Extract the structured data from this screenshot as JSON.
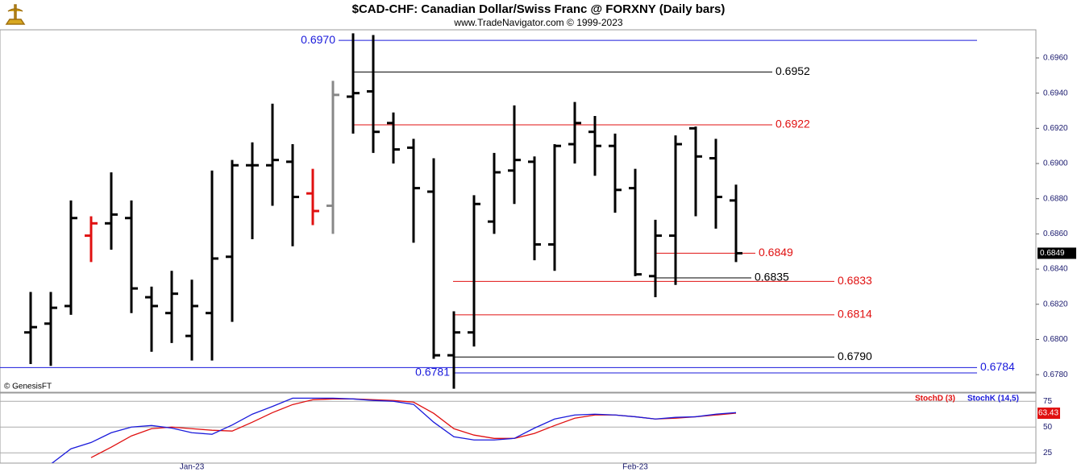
{
  "chart_data": [
    {
      "type": "ohlc",
      "title": "$CAD-CHF:  Canadian Dollar/Swiss Franc @ FORXNY  (Daily bars)",
      "subtitle": "www.TradeNavigator.com © 1999-2023",
      "credit": "© GenesisFT",
      "categories": [
        null,
        null,
        null,
        null,
        null,
        null,
        null,
        null,
        "Jan-23",
        null,
        null,
        null,
        null,
        null,
        null,
        null,
        null,
        null,
        null,
        null,
        null,
        null,
        null,
        null,
        null,
        null,
        null,
        null,
        null,
        null,
        "Feb-23",
        null,
        null,
        null,
        null,
        null
      ],
      "open": [
        0.6804,
        0.6809,
        0.6819,
        0.6859,
        0.6866,
        0.6869,
        0.6824,
        0.6815,
        0.6802,
        0.6815,
        0.6847,
        0.6899,
        0.6899,
        0.6901,
        0.6883,
        0.6876,
        0.6938,
        0.6941,
        0.6923,
        0.6909,
        0.6884,
        0.6791,
        0.6804,
        0.6867,
        0.6896,
        0.6901,
        0.6854,
        0.6911,
        0.6918,
        0.691,
        0.6886,
        0.6836,
        0.6859,
        0.692,
        0.6903,
        0.6879
      ],
      "high": [
        0.6827,
        0.6827,
        0.6879,
        0.687,
        0.6895,
        0.6879,
        0.683,
        0.6839,
        0.6834,
        0.6896,
        0.6902,
        0.6912,
        0.6934,
        0.6911,
        0.6897,
        0.6947,
        0.6974,
        0.6973,
        0.6929,
        0.6914,
        0.6903,
        0.6816,
        0.6882,
        0.6906,
        0.6933,
        0.6904,
        0.6911,
        0.6935,
        0.6927,
        0.6917,
        0.6897,
        0.6868,
        0.6916,
        0.6921,
        0.6914,
        0.6888
      ],
      "low": [
        0.6786,
        0.6785,
        0.6814,
        0.6844,
        0.6851,
        0.6815,
        0.6793,
        0.6798,
        0.6788,
        0.6788,
        0.681,
        0.6857,
        0.6876,
        0.6853,
        0.6865,
        0.686,
        0.6917,
        0.6906,
        0.69,
        0.6855,
        0.6789,
        0.6772,
        0.6796,
        0.686,
        0.6877,
        0.6845,
        0.6839,
        0.69,
        0.6893,
        0.6872,
        0.6836,
        0.6824,
        0.6831,
        0.687,
        0.6863,
        0.6844
      ],
      "close": [
        0.6807,
        0.6818,
        0.6869,
        0.6866,
        0.6871,
        0.6829,
        0.6819,
        0.6826,
        0.6819,
        0.6846,
        0.6899,
        0.6899,
        0.6902,
        0.6881,
        0.6873,
        0.6939,
        0.694,
        0.6918,
        0.6908,
        0.6886,
        0.6791,
        0.6804,
        0.6877,
        0.6895,
        0.6902,
        0.6854,
        0.691,
        0.6923,
        0.691,
        0.6885,
        0.6837,
        0.6859,
        0.6911,
        0.6904,
        0.6881,
        0.6849
      ],
      "colors": [
        "#000",
        "#000",
        "#000",
        "#e01010",
        "#000",
        "#000",
        "#000",
        "#000",
        "#000",
        "#000",
        "#000",
        "#000",
        "#000",
        "#000",
        "#e01010",
        "#888",
        "#000",
        "#000",
        "#000",
        "#000",
        "#000",
        "#000",
        "#000",
        "#000",
        "#000",
        "#000",
        "#000",
        "#000",
        "#000",
        "#000",
        "#000",
        "#000",
        "#000",
        "#000",
        "#000",
        "#000"
      ],
      "ylim": [
        0.677,
        0.6976
      ],
      "yticks": [
        {
          "value": 0.678,
          "label": "0.6780"
        },
        {
          "value": 0.68,
          "label": "0.6800"
        },
        {
          "value": 0.682,
          "label": "0.6820"
        },
        {
          "value": 0.684,
          "label": "0.6840"
        },
        {
          "value": 0.686,
          "label": "0.6860"
        },
        {
          "value": 0.688,
          "label": "0.6880"
        },
        {
          "value": 0.69,
          "label": "0.6900"
        },
        {
          "value": 0.692,
          "label": "0.6920"
        },
        {
          "value": 0.694,
          "label": "0.6940"
        },
        {
          "value": 0.696,
          "label": "0.6960"
        }
      ],
      "lines": [
        {
          "value": 0.697,
          "label": "0.6970",
          "color": "#1a1adb"
        },
        {
          "value": 0.6952,
          "label": "0.6952",
          "color": "#000"
        },
        {
          "value": 0.6922,
          "label": "0.6922",
          "color": "#e01010"
        },
        {
          "value": 0.6849,
          "label": "0.6849",
          "color": "#e01010"
        },
        {
          "value": 0.6835,
          "label": "0.6835",
          "color": "#000"
        },
        {
          "value": 0.6833,
          "label": "0.6833",
          "color": "#e01010"
        },
        {
          "value": 0.6814,
          "label": "0.6814",
          "color": "#e01010"
        },
        {
          "value": 0.679,
          "label": "0.6790",
          "color": "#000"
        },
        {
          "value": 0.6784,
          "label": "0.6784",
          "color": "#1a1adb"
        },
        {
          "value": 0.6781,
          "label": "0.6781",
          "color": "#1a1adb"
        }
      ]
    },
    {
      "type": "line",
      "series": [
        {
          "name": "StochD (3)",
          "color": "#e01010",
          "values": [
            null,
            null,
            null,
            20.3,
            30.5,
            41.4,
            48.4,
            50,
            48.4,
            46.9,
            46.1,
            54.7,
            64,
            71.8,
            76.5,
            77.3,
            77.3,
            76.5,
            75.8,
            74.2,
            63.3,
            48.4,
            42.2,
            39,
            39,
            43.8,
            51.5,
            58.6,
            61.7,
            61.7,
            60,
            57.8,
            58.6,
            60,
            61.7,
            63.43
          ]
        },
        {
          "name": "StochK (14,5)",
          "color": "#1a1adb",
          "values": [
            null,
            14,
            28.9,
            35,
            44.5,
            50,
            51.5,
            49,
            44.5,
            43,
            52,
            62.5,
            70,
            78,
            78,
            78,
            77.3,
            75.8,
            75,
            72,
            54.7,
            40.6,
            37.5,
            37.5,
            39,
            49,
            57.8,
            61.7,
            62.5,
            61.7,
            60,
            57.8,
            59.4,
            60,
            62.5,
            64
          ]
        }
      ],
      "ylim": [
        15,
        83
      ],
      "yticks": [
        25,
        50,
        75
      ]
    }
  ]
}
